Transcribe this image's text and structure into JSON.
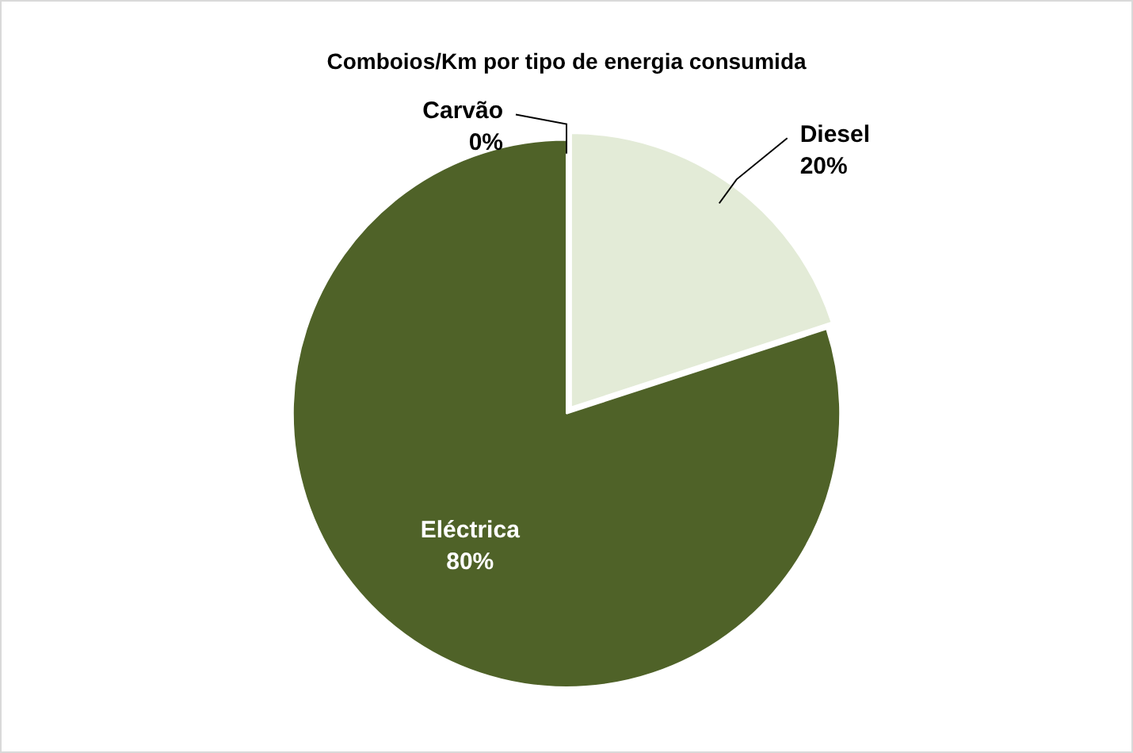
{
  "chart_data": {
    "type": "pie",
    "title": "Comboios/Km por tipo de energia consumida",
    "categories": [
      "Carvão",
      "Diesel",
      "Eléctrica"
    ],
    "values": [
      0,
      20,
      80
    ],
    "colors": [
      "#7f7f7f",
      "#e3ebd7",
      "#4f6228"
    ],
    "value_labels": [
      "0%",
      "20%",
      "80%"
    ],
    "legend": false
  }
}
